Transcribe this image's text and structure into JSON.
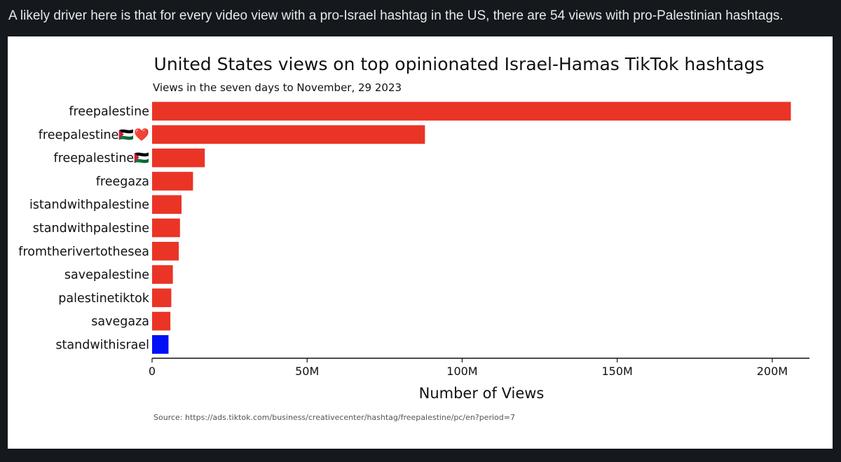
{
  "post": {
    "caption": "A likely driver here is that for every video view with a pro-Israel hashtag in the US, there are 54 views with pro-Palestinian hashtags."
  },
  "colors": {
    "page_background": "#15181d",
    "caption_text": "#e7e9ea",
    "card_background": "#ffffff",
    "pro_palestinian_bar": "#ea3426",
    "pro_israel_bar": "#0010f5"
  },
  "chart_data": {
    "type": "bar",
    "orientation": "horizontal",
    "title": "United States views on top opinionated Israel-Hamas TikTok hashtags",
    "subtitle": "Views in the seven days to November, 29 2023",
    "xlabel": "Number of Views",
    "ylabel": "",
    "xlim": [
      0,
      212000000
    ],
    "xticks": [
      {
        "value": 0,
        "label": "0"
      },
      {
        "value": 50000000,
        "label": "50M"
      },
      {
        "value": 100000000,
        "label": "100M"
      },
      {
        "value": 150000000,
        "label": "150M"
      },
      {
        "value": 200000000,
        "label": "200M"
      }
    ],
    "grid": false,
    "legend": "none",
    "categories": [
      {
        "name": "freepalestine",
        "emoji": ""
      },
      {
        "name": "freepalestine",
        "emoji": "🇵🇸❤️"
      },
      {
        "name": "freepalestine",
        "emoji": "🇵🇸"
      },
      {
        "name": "freegaza",
        "emoji": ""
      },
      {
        "name": "istandwithpalestine",
        "emoji": ""
      },
      {
        "name": "standwithpalestine",
        "emoji": ""
      },
      {
        "name": "fromtherivertothesea",
        "emoji": ""
      },
      {
        "name": "savepalestine",
        "emoji": ""
      },
      {
        "name": "palestinetiktok",
        "emoji": ""
      },
      {
        "name": "savegaza",
        "emoji": ""
      },
      {
        "name": "standwithisrael",
        "emoji": ""
      }
    ],
    "values": [
      206000000,
      88000000,
      17000000,
      13200000,
      9500000,
      9000000,
      8600000,
      6700000,
      6200000,
      5900000,
      5300000
    ],
    "bar_colors": [
      "#ea3426",
      "#ea3426",
      "#ea3426",
      "#ea3426",
      "#ea3426",
      "#ea3426",
      "#ea3426",
      "#ea3426",
      "#ea3426",
      "#ea3426",
      "#0010f5"
    ],
    "source": "Source: https://ads.tiktok.com/business/creativecenter/hashtag/freepalestine/pc/en?period=7"
  }
}
